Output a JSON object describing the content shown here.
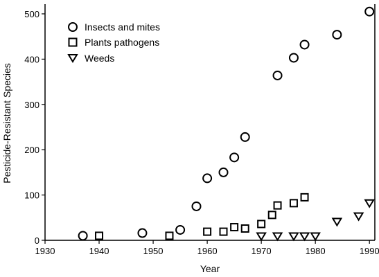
{
  "chart_data": {
    "type": "scatter",
    "title": "",
    "xlabel": "Year",
    "ylabel": "Pesticide-Resistant Species",
    "xlim": [
      1930,
      1991
    ],
    "ylim": [
      0,
      520
    ],
    "xticks": [
      1930,
      1940,
      1950,
      1960,
      1970,
      1980,
      1990
    ],
    "yticks": [
      0,
      100,
      200,
      300,
      400,
      500
    ],
    "grid": false,
    "legend": "top-left",
    "series": [
      {
        "name": "Insects and mites",
        "marker": "circle",
        "points": [
          {
            "x": 1937,
            "y": 10
          },
          {
            "x": 1948,
            "y": 16
          },
          {
            "x": 1955,
            "y": 23
          },
          {
            "x": 1958,
            "y": 75
          },
          {
            "x": 1960,
            "y": 137
          },
          {
            "x": 1963,
            "y": 150
          },
          {
            "x": 1965,
            "y": 183
          },
          {
            "x": 1967,
            "y": 228
          },
          {
            "x": 1973,
            "y": 364
          },
          {
            "x": 1976,
            "y": 403
          },
          {
            "x": 1978,
            "y": 432
          },
          {
            "x": 1984,
            "y": 454
          },
          {
            "x": 1990,
            "y": 505
          }
        ]
      },
      {
        "name": "Plants pathogens",
        "marker": "square",
        "points": [
          {
            "x": 1940,
            "y": 10
          },
          {
            "x": 1953,
            "y": 10
          },
          {
            "x": 1960,
            "y": 19
          },
          {
            "x": 1963,
            "y": 19
          },
          {
            "x": 1965,
            "y": 29
          },
          {
            "x": 1967,
            "y": 26
          },
          {
            "x": 1970,
            "y": 36
          },
          {
            "x": 1972,
            "y": 56
          },
          {
            "x": 1973,
            "y": 77
          },
          {
            "x": 1976,
            "y": 82
          },
          {
            "x": 1978,
            "y": 95
          }
        ]
      },
      {
        "name": "Weeds",
        "marker": "triangle-down",
        "points": [
          {
            "x": 1970,
            "y": 10
          },
          {
            "x": 1973,
            "y": 10
          },
          {
            "x": 1976,
            "y": 10
          },
          {
            "x": 1978,
            "y": 10
          },
          {
            "x": 1980,
            "y": 10
          },
          {
            "x": 1984,
            "y": 42
          },
          {
            "x": 1988,
            "y": 54
          },
          {
            "x": 1990,
            "y": 83
          }
        ]
      }
    ]
  }
}
